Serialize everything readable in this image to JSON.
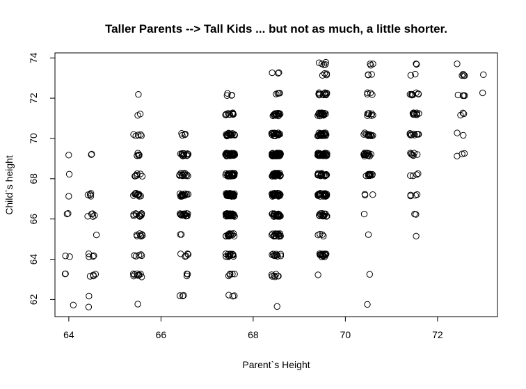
{
  "chart_data": {
    "type": "scatter",
    "title": "Taller Parents --> Tall Kids ... but not as much, a little shorter.",
    "xlabel": "Parent`s Height",
    "ylabel": "Child`s height",
    "xlim": [
      63.7,
      73.3
    ],
    "ylim": [
      61.15,
      74.25
    ],
    "xticks": [
      64,
      66,
      68,
      70,
      72
    ],
    "yticks": [
      62,
      64,
      66,
      68,
      70,
      72,
      74
    ],
    "grid": false,
    "marker": "open-circle",
    "color": "#000000",
    "parent_levels": [
      64,
      64.5,
      65.5,
      66.5,
      67.5,
      68.5,
      69.5,
      70.5,
      71.5,
      72.5,
      73
    ],
    "child_levels": [
      61.7,
      62.2,
      63.2,
      64.2,
      65.2,
      66.2,
      67.2,
      68.2,
      69.2,
      70.2,
      71.2,
      72.2,
      73.2,
      73.7
    ],
    "cell_counts": [
      [
        1,
        0,
        2,
        2,
        0,
        2,
        1,
        1,
        1,
        0,
        0,
        0,
        0,
        0
      ],
      [
        1,
        1,
        4,
        4,
        1,
        5,
        5,
        0,
        2,
        0,
        0,
        0,
        0,
        0
      ],
      [
        1,
        0,
        9,
        5,
        7,
        11,
        11,
        7,
        7,
        5,
        2,
        1,
        0,
        0
      ],
      [
        0,
        3,
        3,
        5,
        2,
        17,
        17,
        14,
        13,
        4,
        0,
        0,
        0,
        0
      ],
      [
        0,
        3,
        5,
        14,
        15,
        36,
        38,
        28,
        38,
        19,
        11,
        4,
        0,
        0
      ],
      [
        1,
        0,
        7,
        11,
        16,
        25,
        31,
        34,
        48,
        21,
        18,
        4,
        3,
        0
      ],
      [
        0,
        0,
        1,
        16,
        4,
        17,
        27,
        20,
        33,
        25,
        20,
        11,
        4,
        5
      ],
      [
        1,
        0,
        1,
        0,
        1,
        1,
        3,
        12,
        18,
        14,
        7,
        4,
        3,
        3
      ],
      [
        0,
        0,
        0,
        0,
        1,
        2,
        4,
        4,
        7,
        10,
        10,
        8,
        2,
        2
      ],
      [
        0,
        0,
        0,
        0,
        0,
        0,
        0,
        0,
        3,
        2,
        3,
        4,
        4,
        1
      ],
      [
        0,
        0,
        0,
        0,
        0,
        0,
        0,
        0,
        0,
        0,
        0,
        1,
        1,
        0
      ]
    ]
  }
}
